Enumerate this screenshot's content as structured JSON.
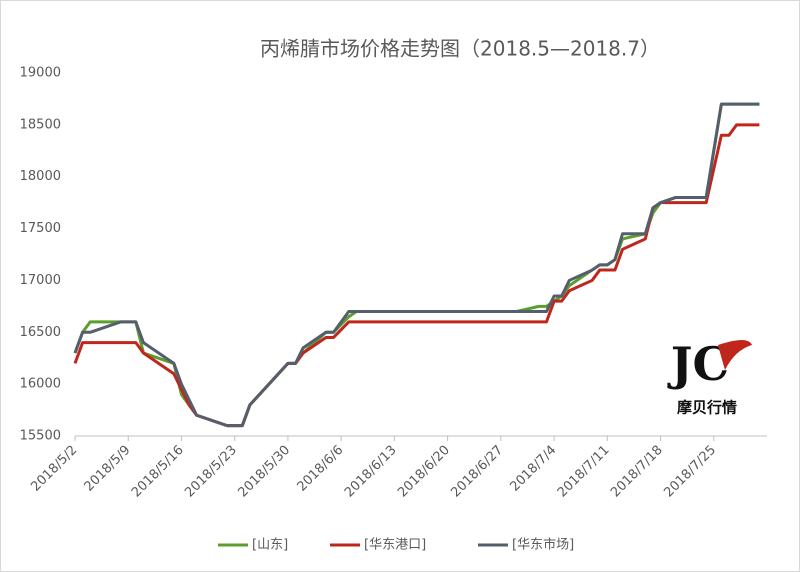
{
  "chart_data": {
    "type": "line",
    "title": "丙烯腈市场价格走势图（2018.5—2018.7）",
    "watermark": "摩贝行情",
    "x": [
      "2018/5/2",
      "2018/5/3",
      "2018/5/4",
      "2018/5/8",
      "2018/5/9",
      "2018/5/10",
      "2018/5/11",
      "2018/5/15",
      "2018/5/16",
      "2018/5/17",
      "2018/5/18",
      "2018/5/22",
      "2018/5/24",
      "2018/5/25",
      "2018/5/30",
      "2018/5/31",
      "2018/6/1",
      "2018/6/4",
      "2018/6/5",
      "2018/6/7",
      "2018/6/8",
      "2018/6/29",
      "2018/7/2",
      "2018/7/3",
      "2018/7/4",
      "2018/7/5",
      "2018/7/6",
      "2018/7/9",
      "2018/7/10",
      "2018/7/11",
      "2018/7/12",
      "2018/7/13",
      "2018/7/16",
      "2018/7/17",
      "2018/7/18",
      "2018/7/20",
      "2018/7/24",
      "2018/7/26",
      "2018/7/27",
      "2018/7/28",
      "2018/7/31"
    ],
    "series": [
      {
        "name": "[山东]",
        "color": "#5b9e2d",
        "values": [
          16300,
          16500,
          16600,
          16600,
          16600,
          16600,
          16300,
          16200,
          15900,
          15800,
          15700,
          15600,
          15600,
          15800,
          16200,
          16200,
          16300,
          16500,
          16500,
          16650,
          16700,
          16700,
          16750,
          16750,
          16800,
          16850,
          16950,
          17100,
          17150,
          17150,
          17200,
          17400,
          17450,
          17650,
          17750,
          17800,
          17800,
          18700,
          18700,
          18700,
          18700
        ]
      },
      {
        "name": "[华东港口]",
        "color": "#c0271c",
        "values": [
          16200,
          16400,
          16400,
          16400,
          16400,
          16400,
          16300,
          16100,
          15950,
          15800,
          15700,
          15600,
          15600,
          15800,
          16200,
          16200,
          16300,
          16450,
          16450,
          16600,
          16600,
          16600,
          16600,
          16600,
          16800,
          16800,
          16900,
          17000,
          17100,
          17100,
          17100,
          17300,
          17400,
          17700,
          17750,
          17750,
          17750,
          18400,
          18400,
          18500,
          18500
        ]
      },
      {
        "name": "[华东市场]",
        "color": "#555e6d",
        "values": [
          16300,
          16500,
          16500,
          16600,
          16600,
          16600,
          16400,
          16200,
          16000,
          15850,
          15700,
          15600,
          15600,
          15800,
          16200,
          16200,
          16350,
          16500,
          16500,
          16700,
          16700,
          16700,
          16700,
          16700,
          16850,
          16850,
          17000,
          17100,
          17150,
          17150,
          17200,
          17450,
          17450,
          17700,
          17750,
          17800,
          17800,
          18700,
          18700,
          18700,
          18700
        ]
      }
    ],
    "xlim": [
      "2018/5/2",
      "2018/8/1"
    ],
    "xticks": [
      "2018/5/2",
      "2018/5/9",
      "2018/5/16",
      "2018/5/23",
      "2018/5/30",
      "2018/6/6",
      "2018/6/13",
      "2018/6/20",
      "2018/6/27",
      "2018/7/4",
      "2018/7/11",
      "2018/7/18",
      "2018/7/25"
    ],
    "ylim": [
      15500,
      19000
    ],
    "yticks": [
      15500,
      16000,
      16500,
      17000,
      17500,
      18000,
      18500,
      19000
    ],
    "grid": false,
    "legend": "bottom"
  }
}
